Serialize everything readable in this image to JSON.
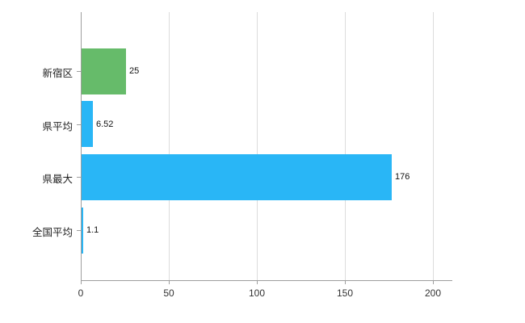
{
  "chart_data": {
    "type": "bar",
    "orientation": "horizontal",
    "title": "",
    "xlabel": "",
    "ylabel": "",
    "categories": [
      "新宿区",
      "県平均",
      "県最大",
      "全国平均"
    ],
    "values": [
      25,
      6.52,
      176,
      1.1
    ],
    "value_labels": [
      "25",
      "6.52",
      "176",
      "1.1"
    ],
    "bar_colors": [
      "#66bb6a",
      "#29b6f6",
      "#29b6f6",
      "#29b6f6"
    ],
    "xlim": [
      0,
      211
    ],
    "x_ticks": [
      0,
      50,
      100,
      150,
      200
    ],
    "grid": true,
    "legend": "none",
    "colors": {
      "grid": "#dcdcdc",
      "axis": "#9e9e9e",
      "tick_label": "#333333",
      "category_label": "#222222",
      "value_label": "#111111",
      "background": "#ffffff"
    }
  }
}
